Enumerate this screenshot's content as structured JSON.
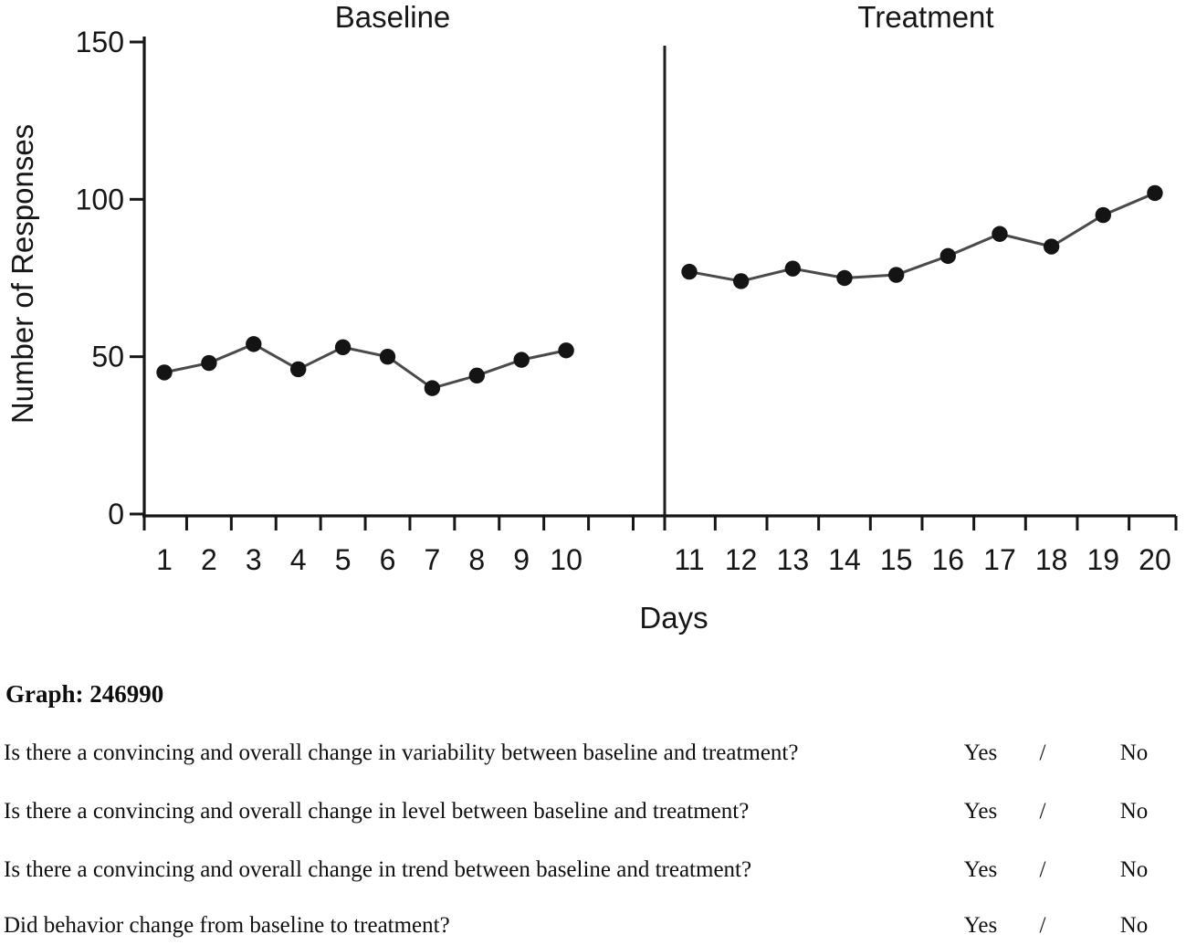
{
  "chart_data": {
    "type": "line",
    "title_baseline": "Baseline",
    "title_treatment": "Treatment",
    "xlabel": "Days",
    "ylabel": "Number of Responses",
    "ylim": [
      0,
      150
    ],
    "yticks": [
      0,
      50,
      100,
      150
    ],
    "grid": false,
    "legend": "none",
    "phase_boundary_after_x": 10,
    "series": [
      {
        "name": "Baseline",
        "x": [
          1,
          2,
          3,
          4,
          5,
          6,
          7,
          8,
          9,
          10
        ],
        "values": [
          45,
          48,
          54,
          46,
          53,
          50,
          40,
          44,
          49,
          52
        ]
      },
      {
        "name": "Treatment",
        "x": [
          11,
          12,
          13,
          14,
          15,
          16,
          17,
          18,
          19,
          20
        ],
        "values": [
          77,
          74,
          78,
          75,
          76,
          82,
          89,
          85,
          95,
          102
        ]
      }
    ]
  },
  "graph_label": "Graph: 246990",
  "questions": [
    {
      "text": "Is there a convincing and overall change in variability between baseline and treatment?",
      "yes": "Yes",
      "slash": "/",
      "no": "No"
    },
    {
      "text": "Is there a convincing and overall change in level between baseline and treatment?",
      "yes": "Yes",
      "slash": "/",
      "no": "No"
    },
    {
      "text": "Is there a convincing and overall change in trend between baseline and treatment?",
      "yes": "Yes",
      "slash": "/",
      "no": "No"
    },
    {
      "text": "Did behavior change from baseline to treatment?",
      "yes": "Yes",
      "slash": "/",
      "no": "No"
    }
  ]
}
